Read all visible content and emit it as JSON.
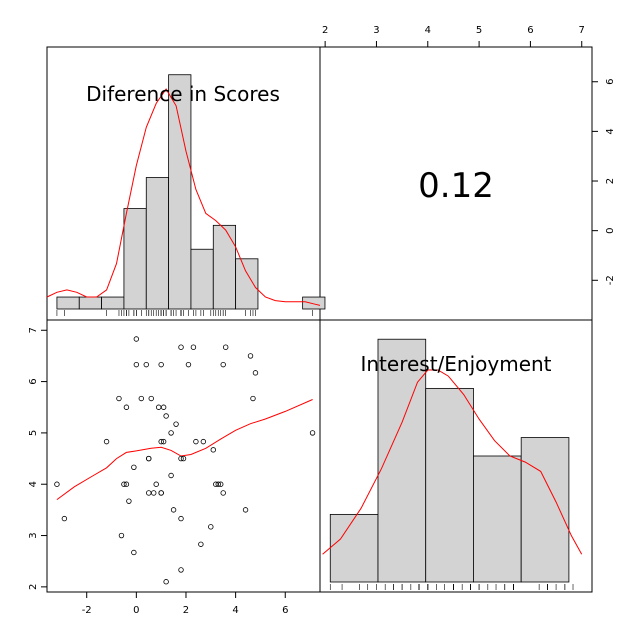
{
  "chart_data": {
    "type": "scatter",
    "variables": [
      "Diference in Scores",
      "Interest/Enjoyment"
    ],
    "correlation_label": "0.12",
    "x_ticks": [
      -2,
      0,
      2,
      4,
      6
    ],
    "y_ticks": [
      2,
      3,
      4,
      5,
      6,
      7
    ],
    "top_ticks": [
      2,
      3,
      4,
      5,
      6,
      7
    ],
    "right_ticks": [
      -2,
      0,
      2,
      4,
      6
    ],
    "xlim": [
      -3.6,
      7.4
    ],
    "ylim": [
      1.9,
      7.2
    ],
    "histogram_x": {
      "edges": [
        -3.2,
        -2.3,
        -1.4,
        -0.5,
        0.4,
        1.3,
        2.2,
        3.1,
        4.0,
        4.9,
        5.8,
        6.7,
        7.6
      ],
      "counts": [
        0.5,
        0.5,
        0.5,
        4.2,
        5.5,
        9.8,
        2.5,
        3.5,
        2.1,
        0,
        0,
        0.5
      ]
    },
    "density_x": {
      "x": [
        -3.6,
        -3.2,
        -2.8,
        -2.4,
        -2.0,
        -1.6,
        -1.2,
        -0.8,
        -0.4,
        0.0,
        0.4,
        0.8,
        1.2,
        1.6,
        2.0,
        2.4,
        2.8,
        3.2,
        3.6,
        4.0,
        4.4,
        4.8,
        5.2,
        5.6,
        6.0,
        6.4,
        6.8,
        7.2,
        7.4
      ],
      "y": [
        0.5,
        0.7,
        0.8,
        0.7,
        0.5,
        0.5,
        0.8,
        1.9,
        4.0,
        6.0,
        7.6,
        8.6,
        9.2,
        8.5,
        6.6,
        5.0,
        4.0,
        3.7,
        3.3,
        2.6,
        1.6,
        0.9,
        0.5,
        0.35,
        0.3,
        0.3,
        0.3,
        0.2,
        0.15
      ]
    },
    "histogram_y": {
      "edges": [
        2.1,
        3.03,
        3.96,
        4.89,
        5.82,
        6.75
      ],
      "counts": [
        2.2,
        7.9,
        6.3,
        4.1,
        4.7
      ]
    },
    "density_y": {
      "x": [
        1.95,
        2.3,
        2.7,
        3.1,
        3.5,
        3.8,
        4.0,
        4.2,
        4.4,
        4.7,
        5.0,
        5.3,
        5.6,
        5.9,
        6.2,
        6.5,
        6.8,
        7.0
      ],
      "y": [
        0.9,
        1.4,
        2.4,
        3.7,
        5.2,
        6.5,
        6.9,
        6.9,
        6.7,
        6.1,
        5.3,
        4.6,
        4.1,
        3.9,
        3.6,
        2.6,
        1.5,
        0.9
      ]
    },
    "points": [
      [
        -3.2,
        4.0
      ],
      [
        -2.9,
        3.33
      ],
      [
        -1.2,
        4.83
      ],
      [
        -0.7,
        5.67
      ],
      [
        -0.6,
        3.0
      ],
      [
        -0.5,
        4.0
      ],
      [
        -0.4,
        5.5
      ],
      [
        -0.4,
        4.0
      ],
      [
        -0.3,
        3.67
      ],
      [
        -0.1,
        4.33
      ],
      [
        -0.1,
        2.67
      ],
      [
        0.0,
        6.33
      ],
      [
        0.0,
        6.83
      ],
      [
        0.2,
        5.67
      ],
      [
        0.4,
        6.33
      ],
      [
        0.5,
        4.5
      ],
      [
        0.5,
        4.5
      ],
      [
        0.5,
        3.83
      ],
      [
        0.6,
        5.67
      ],
      [
        0.7,
        3.83
      ],
      [
        0.8,
        4.0
      ],
      [
        0.9,
        5.5
      ],
      [
        1.0,
        4.83
      ],
      [
        1.0,
        3.83
      ],
      [
        1.0,
        3.83
      ],
      [
        1.0,
        6.33
      ],
      [
        1.1,
        4.83
      ],
      [
        1.1,
        5.5
      ],
      [
        1.2,
        5.33
      ],
      [
        1.2,
        2.1
      ],
      [
        1.4,
        5.0
      ],
      [
        1.4,
        4.17
      ],
      [
        1.5,
        3.5
      ],
      [
        1.6,
        5.17
      ],
      [
        1.8,
        6.67
      ],
      [
        1.8,
        4.5
      ],
      [
        1.8,
        3.33
      ],
      [
        1.8,
        2.33
      ],
      [
        1.9,
        4.5
      ],
      [
        2.1,
        6.33
      ],
      [
        2.3,
        6.67
      ],
      [
        2.4,
        4.83
      ],
      [
        2.6,
        2.83
      ],
      [
        2.7,
        4.83
      ],
      [
        3.0,
        3.17
      ],
      [
        3.1,
        4.67
      ],
      [
        3.2,
        4.0
      ],
      [
        3.3,
        4.0
      ],
      [
        3.4,
        4.0
      ],
      [
        3.5,
        6.33
      ],
      [
        3.5,
        3.83
      ],
      [
        3.6,
        6.67
      ],
      [
        4.4,
        3.5
      ],
      [
        4.6,
        6.5
      ],
      [
        4.7,
        5.67
      ],
      [
        4.8,
        6.17
      ],
      [
        7.1,
        5.0
      ]
    ],
    "smooth": {
      "x": [
        -3.2,
        -2.5,
        -1.8,
        -1.2,
        -0.8,
        -0.4,
        0.0,
        0.6,
        1.0,
        1.4,
        1.8,
        2.2,
        2.8,
        3.4,
        4.0,
        4.6,
        5.2,
        6.0,
        7.1
      ],
      "y": [
        3.7,
        3.95,
        4.15,
        4.32,
        4.5,
        4.62,
        4.65,
        4.7,
        4.72,
        4.66,
        4.55,
        4.58,
        4.7,
        4.88,
        5.05,
        5.18,
        5.27,
        5.42,
        5.65
      ]
    }
  }
}
